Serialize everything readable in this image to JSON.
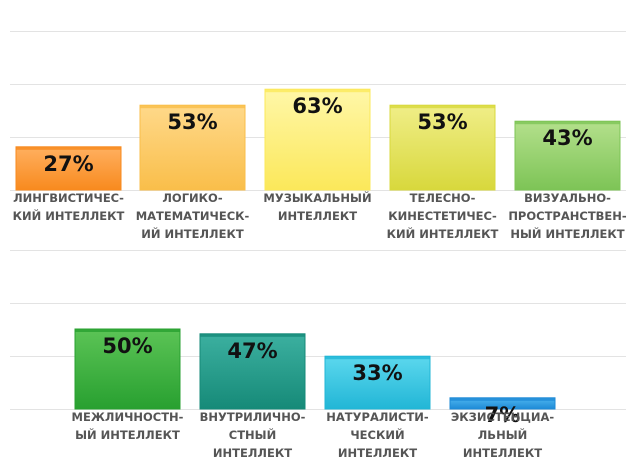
{
  "chart_data": [
    {
      "type": "bar",
      "categories": [
        "ЛИНГВИСТИЧЕС-\nКИЙ ИНТЕЛЛЕКТ",
        "ЛОГИКО-\nМАТЕМАТИЧЕСК-\nИЙ ИНТЕЛЛЕКТ",
        "МУЗЫКАЛЬНЫЙ\nИНТЕЛЛЕКТ",
        "ТЕЛЕСНО-\nКИНЕСТЕТИЧЕС-\nКИЙ ИНТЕЛЛЕКТ",
        "ВИЗУАЛЬНО-\nПРОСТРАНСТВЕН-\nНЫЙ ИНТЕЛЛЕКТ"
      ],
      "values": [
        27,
        53,
        63,
        53,
        43
      ],
      "value_labels": [
        "27%",
        "53%",
        "63%",
        "53%",
        "43%"
      ],
      "colors": [
        [
          "#ffb060",
          "#f88a1e"
        ],
        [
          "#ffd98a",
          "#f9be4a"
        ],
        [
          "#fff7a8",
          "#fbe85a"
        ],
        [
          "#f0ee88",
          "#d8d83c"
        ],
        [
          "#b4e08c",
          "#7dc456"
        ]
      ],
      "ylim": [
        0,
        100
      ],
      "grid": true
    },
    {
      "type": "bar",
      "categories": [
        "МЕЖЛИЧНОСТН-\nЫЙ ИНТЕЛЛЕКТ",
        "ВНУТРИЛИЧНО-\nСТНЫЙ\nИНТЕЛЛЕКТ",
        "НАТУРАЛИСТИ-\nЧЕСКИЙ\nИНТЕЛЛЕКТ",
        "ЭКЗИСТЕНЦИА-\nЛЬНЫЙ\nИНТЕЛЛЕКТ"
      ],
      "values": [
        50,
        47,
        33,
        7
      ],
      "value_labels": [
        "50%",
        "47%",
        "33%",
        "7%"
      ],
      "colors": [
        [
          "#5cc456",
          "#28a030"
        ],
        [
          "#3cb0a0",
          "#168a78"
        ],
        [
          "#5cd8ee",
          "#22b6d6"
        ],
        [
          "#4eb6f0",
          "#1e8ad6"
        ]
      ],
      "ylim": [
        0,
        100
      ],
      "grid": true
    }
  ]
}
